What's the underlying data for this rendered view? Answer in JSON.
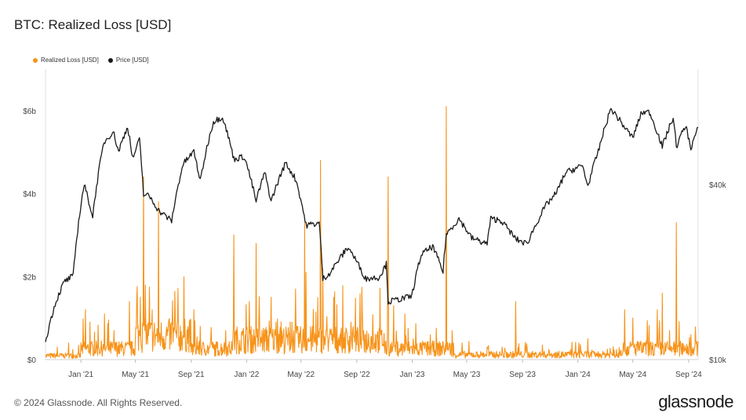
{
  "title": "BTC: Realized Loss [USD]",
  "footer": "© 2024 Glassnode. All Rights Reserved.",
  "brand": "glassnode",
  "chart_data": {
    "type": "line",
    "title": "BTC: Realized Loss [USD]",
    "x_start": "2020-10-15",
    "x_end": "2024-09-22",
    "x_ticks": [
      {
        "label": "Jan '21",
        "date": "2021-01-01"
      },
      {
        "label": "May '21",
        "date": "2021-05-01"
      },
      {
        "label": "Sep '21",
        "date": "2021-09-01"
      },
      {
        "label": "Jan '22",
        "date": "2022-01-01"
      },
      {
        "label": "May '22",
        "date": "2022-05-01"
      },
      {
        "label": "Sep '22",
        "date": "2022-09-01"
      },
      {
        "label": "Jan '23",
        "date": "2023-01-01"
      },
      {
        "label": "May '23",
        "date": "2023-05-01"
      },
      {
        "label": "Sep '23",
        "date": "2023-09-01"
      },
      {
        "label": "Jan '24",
        "date": "2024-01-01"
      },
      {
        "label": "May '24",
        "date": "2024-05-01"
      },
      {
        "label": "Sep '24",
        "date": "2024-09-01"
      }
    ],
    "y_left": {
      "ylim": [
        0,
        7000000000
      ],
      "ticks": [
        {
          "label": "$0",
          "value": 0
        },
        {
          "label": "$2b",
          "value": 2000000000
        },
        {
          "label": "$4b",
          "value": 4000000000
        },
        {
          "label": "$6b",
          "value": 6000000000
        }
      ]
    },
    "y_right": {
      "scale": "log",
      "ylim": [
        10000,
        100000
      ],
      "ticks": [
        {
          "label": "$10k",
          "value": 10000
        },
        {
          "label": "$40k",
          "value": 40000
        }
      ]
    },
    "grid": false,
    "legend_position": "top-left",
    "series": [
      {
        "name": "Realized Loss [USD]",
        "color": "#f7931a",
        "axis": "left",
        "baseline": 250000000,
        "spikes": [
          [
            "2020-11-10",
            300000000
          ],
          [
            "2020-12-05",
            400000000
          ],
          [
            "2021-01-11",
            1200000000
          ],
          [
            "2021-01-21",
            900000000
          ],
          [
            "2021-02-22",
            1100000000
          ],
          [
            "2021-03-15",
            700000000
          ],
          [
            "2021-04-18",
            1400000000
          ],
          [
            "2021-05-12",
            1500000000
          ],
          [
            "2021-05-19",
            4400000000
          ],
          [
            "2021-05-23",
            1800000000
          ],
          [
            "2021-06-07",
            1200000000
          ],
          [
            "2021-06-21",
            3800000000
          ],
          [
            "2021-07-20",
            900000000
          ],
          [
            "2021-09-07",
            1200000000
          ],
          [
            "2021-09-21",
            800000000
          ],
          [
            "2021-11-16",
            700000000
          ],
          [
            "2021-12-04",
            3000000000
          ],
          [
            "2022-01-07",
            1400000000
          ],
          [
            "2022-01-22",
            2800000000
          ],
          [
            "2022-02-24",
            1500000000
          ],
          [
            "2022-03-07",
            900000000
          ],
          [
            "2022-04-11",
            900000000
          ],
          [
            "2022-05-09",
            3300000000
          ],
          [
            "2022-05-12",
            2100000000
          ],
          [
            "2022-05-26",
            800000000
          ],
          [
            "2022-06-13",
            4800000000
          ],
          [
            "2022-06-18",
            2200000000
          ],
          [
            "2022-07-12",
            1500000000
          ],
          [
            "2022-08-19",
            900000000
          ],
          [
            "2022-09-13",
            1200000000
          ],
          [
            "2022-10-15",
            600000000
          ],
          [
            "2022-11-08",
            2000000000
          ],
          [
            "2022-11-09",
            4400000000
          ],
          [
            "2022-11-21",
            1300000000
          ],
          [
            "2022-12-16",
            1100000000
          ],
          [
            "2023-01-03",
            500000000
          ],
          [
            "2023-02-10",
            600000000
          ],
          [
            "2023-03-09",
            400000000
          ],
          [
            "2023-03-17",
            6100000000
          ],
          [
            "2023-04-21",
            400000000
          ],
          [
            "2023-06-15",
            300000000
          ],
          [
            "2023-08-17",
            1400000000
          ],
          [
            "2023-09-11",
            300000000
          ],
          [
            "2023-10-15",
            350000000
          ],
          [
            "2024-01-03",
            400000000
          ],
          [
            "2024-01-23",
            500000000
          ],
          [
            "2024-04-13",
            1200000000
          ],
          [
            "2024-05-01",
            1000000000
          ],
          [
            "2024-06-24",
            1200000000
          ],
          [
            "2024-07-05",
            1600000000
          ],
          [
            "2024-07-21",
            700000000
          ],
          [
            "2024-08-05",
            3300000000
          ],
          [
            "2024-09-06",
            600000000
          ]
        ]
      },
      {
        "name": "Price [USD]",
        "color": "#1a1a1a",
        "axis": "right",
        "values": [
          [
            "2020-10-15",
            11500
          ],
          [
            "2020-11-05",
            15500
          ],
          [
            "2020-11-25",
            18500
          ],
          [
            "2020-12-15",
            19400
          ],
          [
            "2021-01-08",
            40000
          ],
          [
            "2021-01-27",
            31000
          ],
          [
            "2021-02-21",
            56000
          ],
          [
            "2021-03-13",
            61000
          ],
          [
            "2021-03-25",
            52000
          ],
          [
            "2021-04-14",
            63500
          ],
          [
            "2021-04-25",
            49000
          ],
          [
            "2021-05-10",
            57000
          ],
          [
            "2021-05-19",
            37000
          ],
          [
            "2021-06-01",
            36500
          ],
          [
            "2021-06-22",
            32500
          ],
          [
            "2021-07-20",
            30000
          ],
          [
            "2021-08-14",
            47000
          ],
          [
            "2021-09-07",
            52000
          ],
          [
            "2021-09-21",
            41000
          ],
          [
            "2021-10-20",
            66000
          ],
          [
            "2021-11-09",
            68500
          ],
          [
            "2021-12-04",
            49000
          ],
          [
            "2021-12-27",
            50000
          ],
          [
            "2022-01-22",
            35000
          ],
          [
            "2022-02-10",
            44000
          ],
          [
            "2022-02-24",
            35000
          ],
          [
            "2022-03-28",
            47500
          ],
          [
            "2022-04-20",
            41500
          ],
          [
            "2022-05-12",
            29000
          ],
          [
            "2022-06-10",
            29500
          ],
          [
            "2022-06-18",
            18900
          ],
          [
            "2022-07-05",
            20000
          ],
          [
            "2022-08-13",
            24400
          ],
          [
            "2022-09-20",
            19000
          ],
          [
            "2022-10-20",
            19200
          ],
          [
            "2022-11-05",
            21300
          ],
          [
            "2022-11-09",
            15800
          ],
          [
            "2022-12-31",
            16500
          ],
          [
            "2023-01-21",
            23000
          ],
          [
            "2023-02-15",
            24500
          ],
          [
            "2023-03-10",
            20000
          ],
          [
            "2023-03-17",
            27000
          ],
          [
            "2023-04-14",
            30500
          ],
          [
            "2023-05-12",
            26200
          ],
          [
            "2023-06-15",
            25000
          ],
          [
            "2023-06-23",
            30500
          ],
          [
            "2023-07-15",
            30200
          ],
          [
            "2023-08-17",
            26000
          ],
          [
            "2023-09-11",
            25000
          ],
          [
            "2023-10-23",
            34000
          ],
          [
            "2023-11-15",
            37500
          ],
          [
            "2023-12-05",
            44000
          ],
          [
            "2024-01-11",
            46500
          ],
          [
            "2024-01-23",
            39500
          ],
          [
            "2024-02-15",
            52000
          ],
          [
            "2024-03-14",
            73000
          ],
          [
            "2024-04-13",
            63000
          ],
          [
            "2024-05-01",
            58000
          ],
          [
            "2024-05-21",
            71000
          ],
          [
            "2024-06-07",
            71000
          ],
          [
            "2024-07-05",
            54000
          ],
          [
            "2024-07-29",
            68000
          ],
          [
            "2024-08-05",
            54000
          ],
          [
            "2024-08-25",
            64000
          ],
          [
            "2024-09-06",
            53500
          ],
          [
            "2024-09-22",
            63000
          ]
        ]
      }
    ]
  }
}
